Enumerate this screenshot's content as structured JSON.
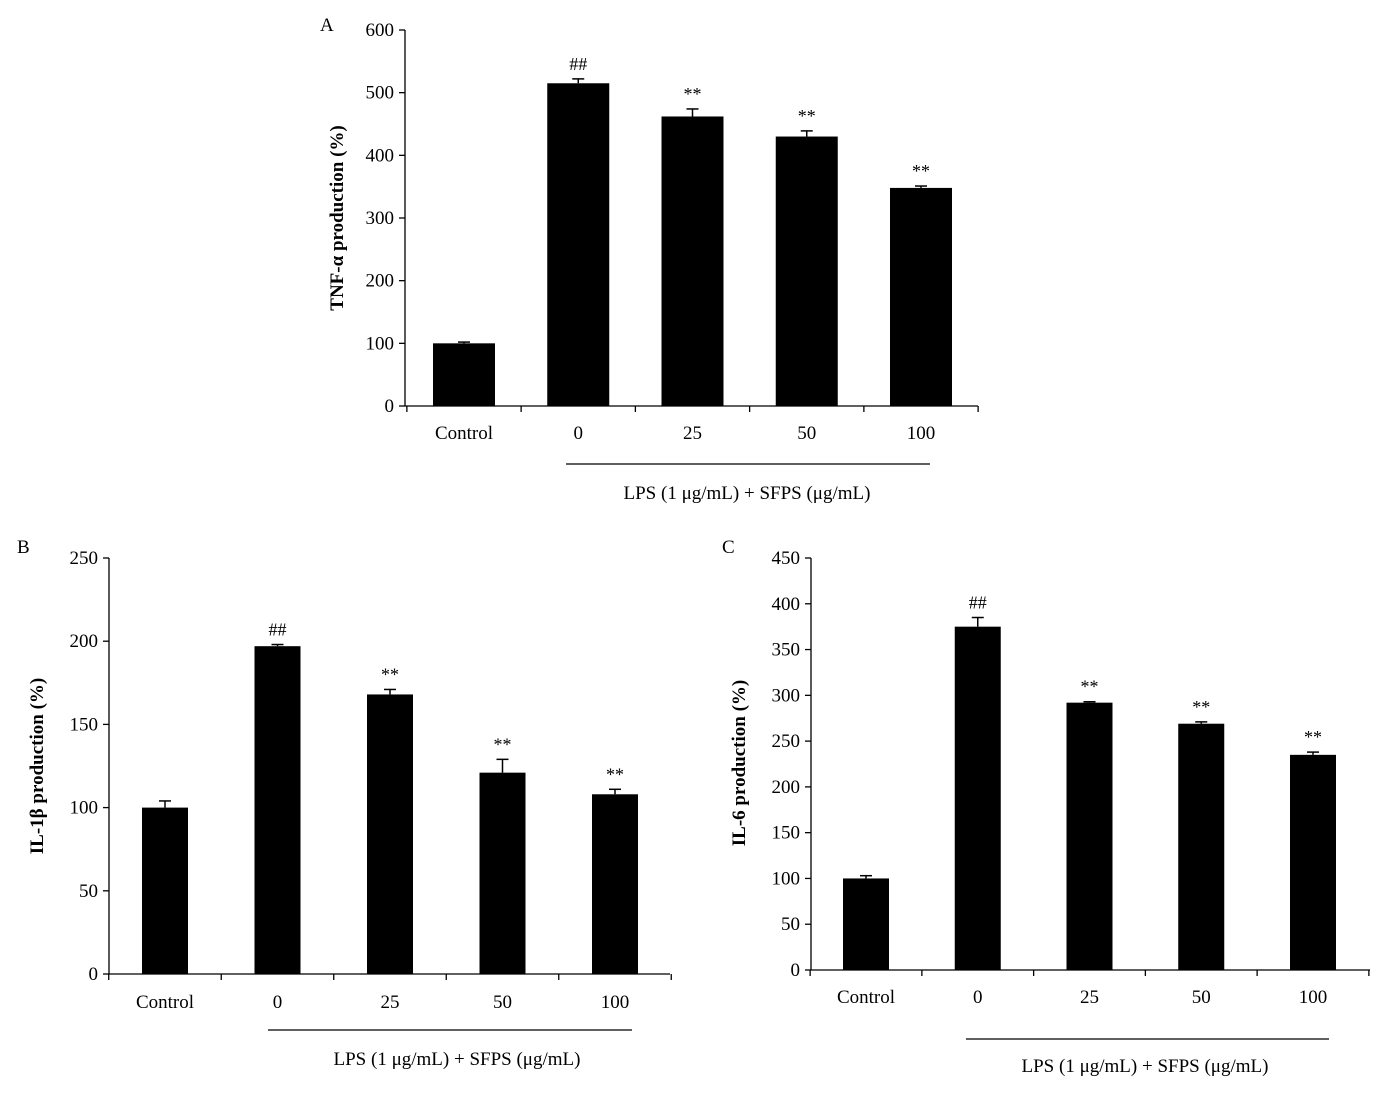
{
  "chart_data": [
    {
      "panel": "A",
      "type": "bar",
      "ylabel": "TNF-α production (%)",
      "ylim": [
        0,
        600
      ],
      "yticks": [
        0,
        100,
        200,
        300,
        400,
        500,
        600
      ],
      "categories": [
        "Control",
        "0",
        "25",
        "50",
        "100"
      ],
      "values": [
        100,
        515,
        462,
        430,
        348
      ],
      "errors": [
        2,
        7,
        12,
        9,
        3
      ],
      "annotations": [
        "",
        "##",
        "**",
        "**",
        "**"
      ],
      "group_label": "LPS (1 μg/mL) + SFPS (μg/mL)"
    },
    {
      "panel": "B",
      "type": "bar",
      "ylabel": "IL-1β production (%)",
      "ylim": [
        0,
        250
      ],
      "yticks": [
        0,
        50,
        100,
        150,
        200,
        250
      ],
      "categories": [
        "Control",
        "0",
        "25",
        "50",
        "100"
      ],
      "values": [
        100,
        197,
        168,
        121,
        108
      ],
      "errors": [
        4,
        1,
        3,
        8,
        3
      ],
      "annotations": [
        "",
        "##",
        "**",
        "**",
        "**"
      ],
      "group_label": "LPS (1 μg/mL) + SFPS (μg/mL)"
    },
    {
      "panel": "C",
      "type": "bar",
      "ylabel": "IL-6 production (%)",
      "ylim": [
        0,
        450
      ],
      "yticks": [
        0,
        50,
        100,
        150,
        200,
        250,
        300,
        350,
        400,
        450
      ],
      "categories": [
        "Control",
        "0",
        "25",
        "50",
        "100"
      ],
      "values": [
        100,
        375,
        292,
        269,
        235
      ],
      "errors": [
        3,
        10,
        1,
        2,
        3
      ],
      "annotations": [
        "",
        "##",
        "**",
        "**",
        "**"
      ],
      "group_label": "LPS (1 μg/mL) + SFPS (μg/mL)"
    }
  ],
  "colors": {
    "bar": "#000000",
    "axis": "#000000"
  }
}
